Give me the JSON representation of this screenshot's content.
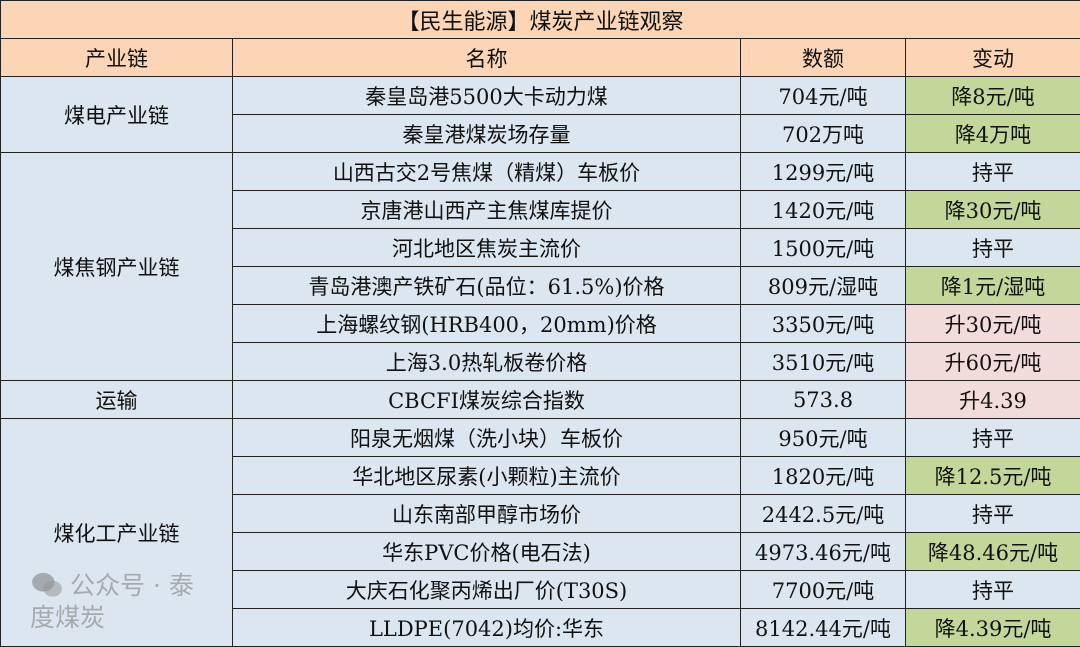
{
  "title": "【民生能源】煤炭产业链观察",
  "headers": [
    "产业链",
    "名称",
    "数额",
    "变动"
  ],
  "groups": [
    {
      "chain": "煤电产业链",
      "rows": [
        {
          "name": "秦皇岛港5500大卡动力煤",
          "value": "704元/吨",
          "change": "降8元/吨",
          "trend": "down"
        },
        {
          "name": "秦皇港煤炭场存量",
          "value": "702万吨",
          "change": "降4万吨",
          "trend": "down"
        }
      ]
    },
    {
      "chain": "煤焦钢产业链",
      "rows": [
        {
          "name": "山西古交2号焦煤（精煤）车板价",
          "value": "1299元/吨",
          "change": "持平",
          "trend": "flat"
        },
        {
          "name": "京唐港山西产主焦煤库提价",
          "value": "1420元/吨",
          "change": "降30元/吨",
          "trend": "down"
        },
        {
          "name": "河北地区焦炭主流价",
          "value": "1500元/吨",
          "change": "持平",
          "trend": "flat"
        },
        {
          "name": "青岛港澳产铁矿石(品位：61.5%)价格",
          "value": "809元/湿吨",
          "change": "降1元/湿吨",
          "trend": "down"
        },
        {
          "name": "上海螺纹钢(HRB400，20mm)价格",
          "value": "3350元/吨",
          "change": "升30元/吨",
          "trend": "up"
        },
        {
          "name": "上海3.0热轧板卷价格",
          "value": "3510元/吨",
          "change": "升60元/吨",
          "trend": "up"
        }
      ]
    },
    {
      "chain": "运输",
      "rows": [
        {
          "name": "CBCFI煤炭综合指数",
          "value": "573.8",
          "change": "升4.39",
          "trend": "up"
        }
      ]
    },
    {
      "chain": "煤化工产业链",
      "rows": [
        {
          "name": "阳泉无烟煤（洗小块）车板价",
          "value": "950元/吨",
          "change": "持平",
          "trend": "flat"
        },
        {
          "name": "华北地区尿素(小颗粒)主流价",
          "value": "1820元/吨",
          "change": "降12.5元/吨",
          "trend": "down"
        },
        {
          "name": "山东南部甲醇市场价",
          "value": "2442.5元/吨",
          "change": "持平",
          "trend": "flat"
        },
        {
          "name": "华东PVC价格(电石法)",
          "value": "4973.46元/吨",
          "change": "降48.46元/吨",
          "trend": "down"
        },
        {
          "name": "大庆石化聚丙烯出厂价(T30S)",
          "value": "7700元/吨",
          "change": "持平",
          "trend": "flat"
        },
        {
          "name": "LLDPE(7042)均价:华东",
          "value": "8142.44元/吨",
          "change": "降4.39元/吨",
          "trend": "down"
        }
      ]
    }
  ],
  "colors": {
    "header": "#fbd5b5",
    "body": "#dce6f1",
    "down": "#c4d79b",
    "up": "#f2dcdb"
  },
  "watermark": {
    "icon": "wechat-icon",
    "text": "公众号 · 泰度煤炭"
  }
}
